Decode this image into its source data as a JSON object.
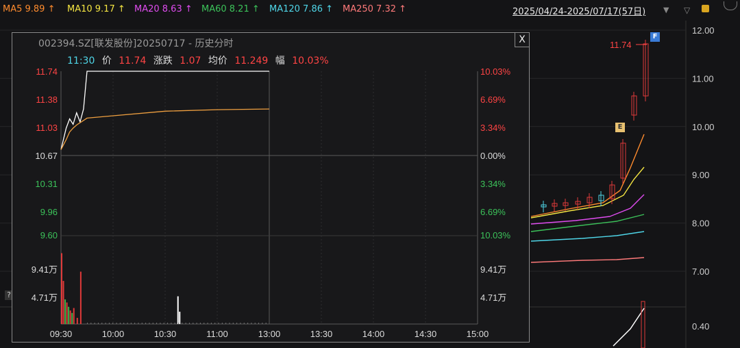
{
  "ma_bar": [
    {
      "label": "MA5 9.89 ↑",
      "color": "#ff8c2e"
    },
    {
      "label": "MA10 9.17 ↑",
      "color": "#f5e642"
    },
    {
      "label": "MA20 8.63 ↑",
      "color": "#e04cf0"
    },
    {
      "label": "MA60 8.21 ↑",
      "color": "#3cc35a"
    },
    {
      "label": "MA120 7.86 ↑",
      "color": "#4fd6e8"
    },
    {
      "label": "MA250 7.32 ↑",
      "color": "#ff7a7a"
    }
  ],
  "date_range": "2025/04/24-2025/07/17(57日)",
  "price_axis": [
    "12.00",
    "11.00",
    "10.00",
    "9.00",
    "8.00",
    "7.00"
  ],
  "volume_axis": [
    "0.40"
  ],
  "last_price_label": "11.74",
  "badges": {
    "f": "F",
    "e": "E"
  },
  "help_mark": "?",
  "popup": {
    "title": "002394.SZ[联发股份]20250717 - 历史分时",
    "close": "X",
    "info": {
      "time": "11:30",
      "price_label": "价",
      "price": "11.74",
      "change_label": "涨跌",
      "change": "1.07",
      "avg_label": "均价",
      "avg": "11.249",
      "pct_label": "幅",
      "pct": "10.03%"
    },
    "left_price_labels": [
      "11.74",
      "11.38",
      "11.03",
      "10.67",
      "10.31",
      "9.96",
      "9.60"
    ],
    "right_pct_labels": [
      "10.03%",
      "6.69%",
      "3.34%",
      "0.00%",
      "3.34%",
      "6.69%",
      "10.03%"
    ],
    "volume_labels": [
      "9.41万",
      "4.71万"
    ],
    "time_labels": [
      "09:30",
      "10:00",
      "10:30",
      "11:00",
      "13:00",
      "13:30",
      "14:00",
      "14:30",
      "15:00"
    ]
  },
  "chart_data": {
    "type": "line",
    "title": "002394.SZ[联发股份]20250717 - 历史分时",
    "x": [
      "09:30",
      "09:33",
      "09:35",
      "09:37",
      "09:39",
      "09:41",
      "09:43",
      "09:45",
      "10:00",
      "10:30",
      "11:00",
      "11:30"
    ],
    "series": [
      {
        "name": "价",
        "values": [
          10.72,
          11.0,
          11.12,
          11.05,
          11.2,
          11.08,
          11.25,
          11.74,
          11.74,
          11.74,
          11.74,
          11.74
        ],
        "color": "#ffffff"
      },
      {
        "name": "均价",
        "values": [
          10.72,
          10.85,
          10.95,
          11.0,
          11.04,
          11.07,
          11.1,
          11.13,
          11.16,
          11.22,
          11.24,
          11.249
        ],
        "color": "#f0a040"
      }
    ],
    "ylim": [
      9.6,
      11.74
    ],
    "volume": {
      "x": [
        "09:30",
        "09:31",
        "09:32",
        "09:33",
        "09:34",
        "09:35",
        "09:36",
        "09:37",
        "09:39",
        "09:41",
        "10:37",
        "10:38"
      ],
      "values": [
        11.5,
        7.0,
        4.0,
        3.5,
        2.8,
        2.2,
        1.8,
        2.6,
        1.0,
        8.5,
        4.5,
        2.0
      ],
      "colors": [
        "#e03a3a",
        "#e03a3a",
        "#3ab34a",
        "#e03a3a",
        "#3ab34a",
        "#e03a3a",
        "#3ab34a",
        "#e03a3a",
        "#e03a3a",
        "#e03a3a",
        "#ffffff",
        "#ffffff"
      ]
    },
    "volume_ylim": [
      0,
      14.12
    ]
  }
}
